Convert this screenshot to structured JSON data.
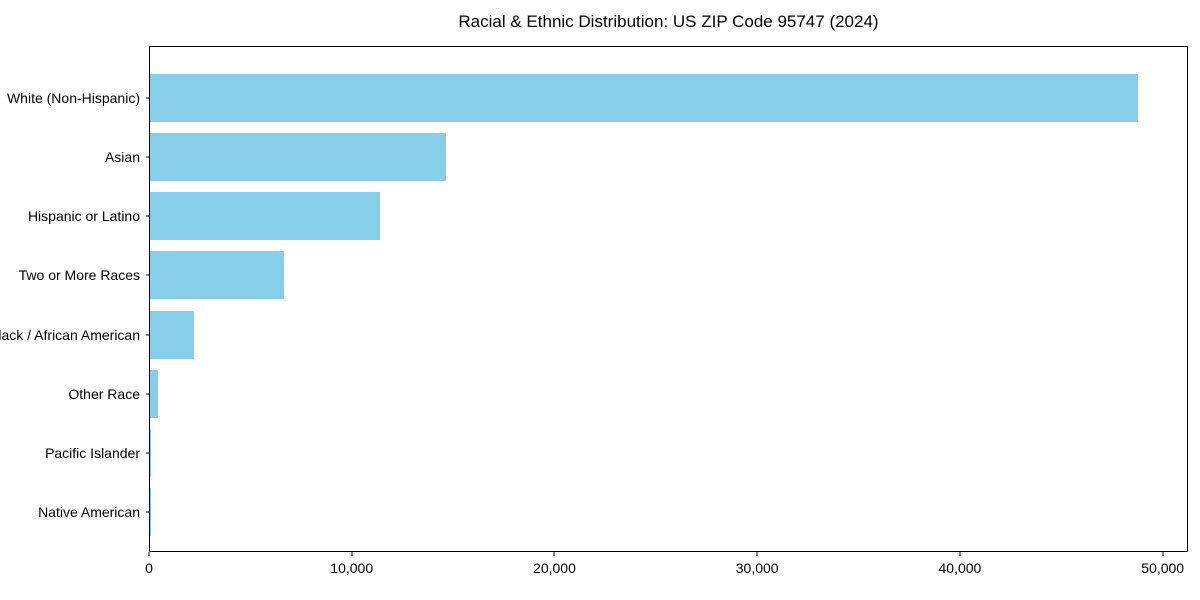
{
  "chart_data": {
    "type": "bar",
    "orientation": "horizontal",
    "title": "Racial & Ethnic Distribution: US ZIP Code 95747 (2024)",
    "categories": [
      "White (Non-Hispanic)",
      "Asian",
      "Hispanic or Latino",
      "Two or More Races",
      "Black / African American",
      "Other Race",
      "Pacific Islander",
      "Native American"
    ],
    "values": [
      48810,
      14630,
      11370,
      6640,
      2170,
      420,
      70,
      15
    ],
    "xlabel": "",
    "ylabel": "",
    "xlim": [
      0,
      51250
    ],
    "xticks": [
      0,
      10000,
      20000,
      30000,
      40000,
      50000
    ],
    "xtick_labels": [
      "0",
      "10,000",
      "20,000",
      "30,000",
      "40,000",
      "50,000"
    ],
    "bar_color": "#87CEEB",
    "background_color": "#ffffff",
    "spine_color": "#000000",
    "grid": false,
    "legend": null
  }
}
